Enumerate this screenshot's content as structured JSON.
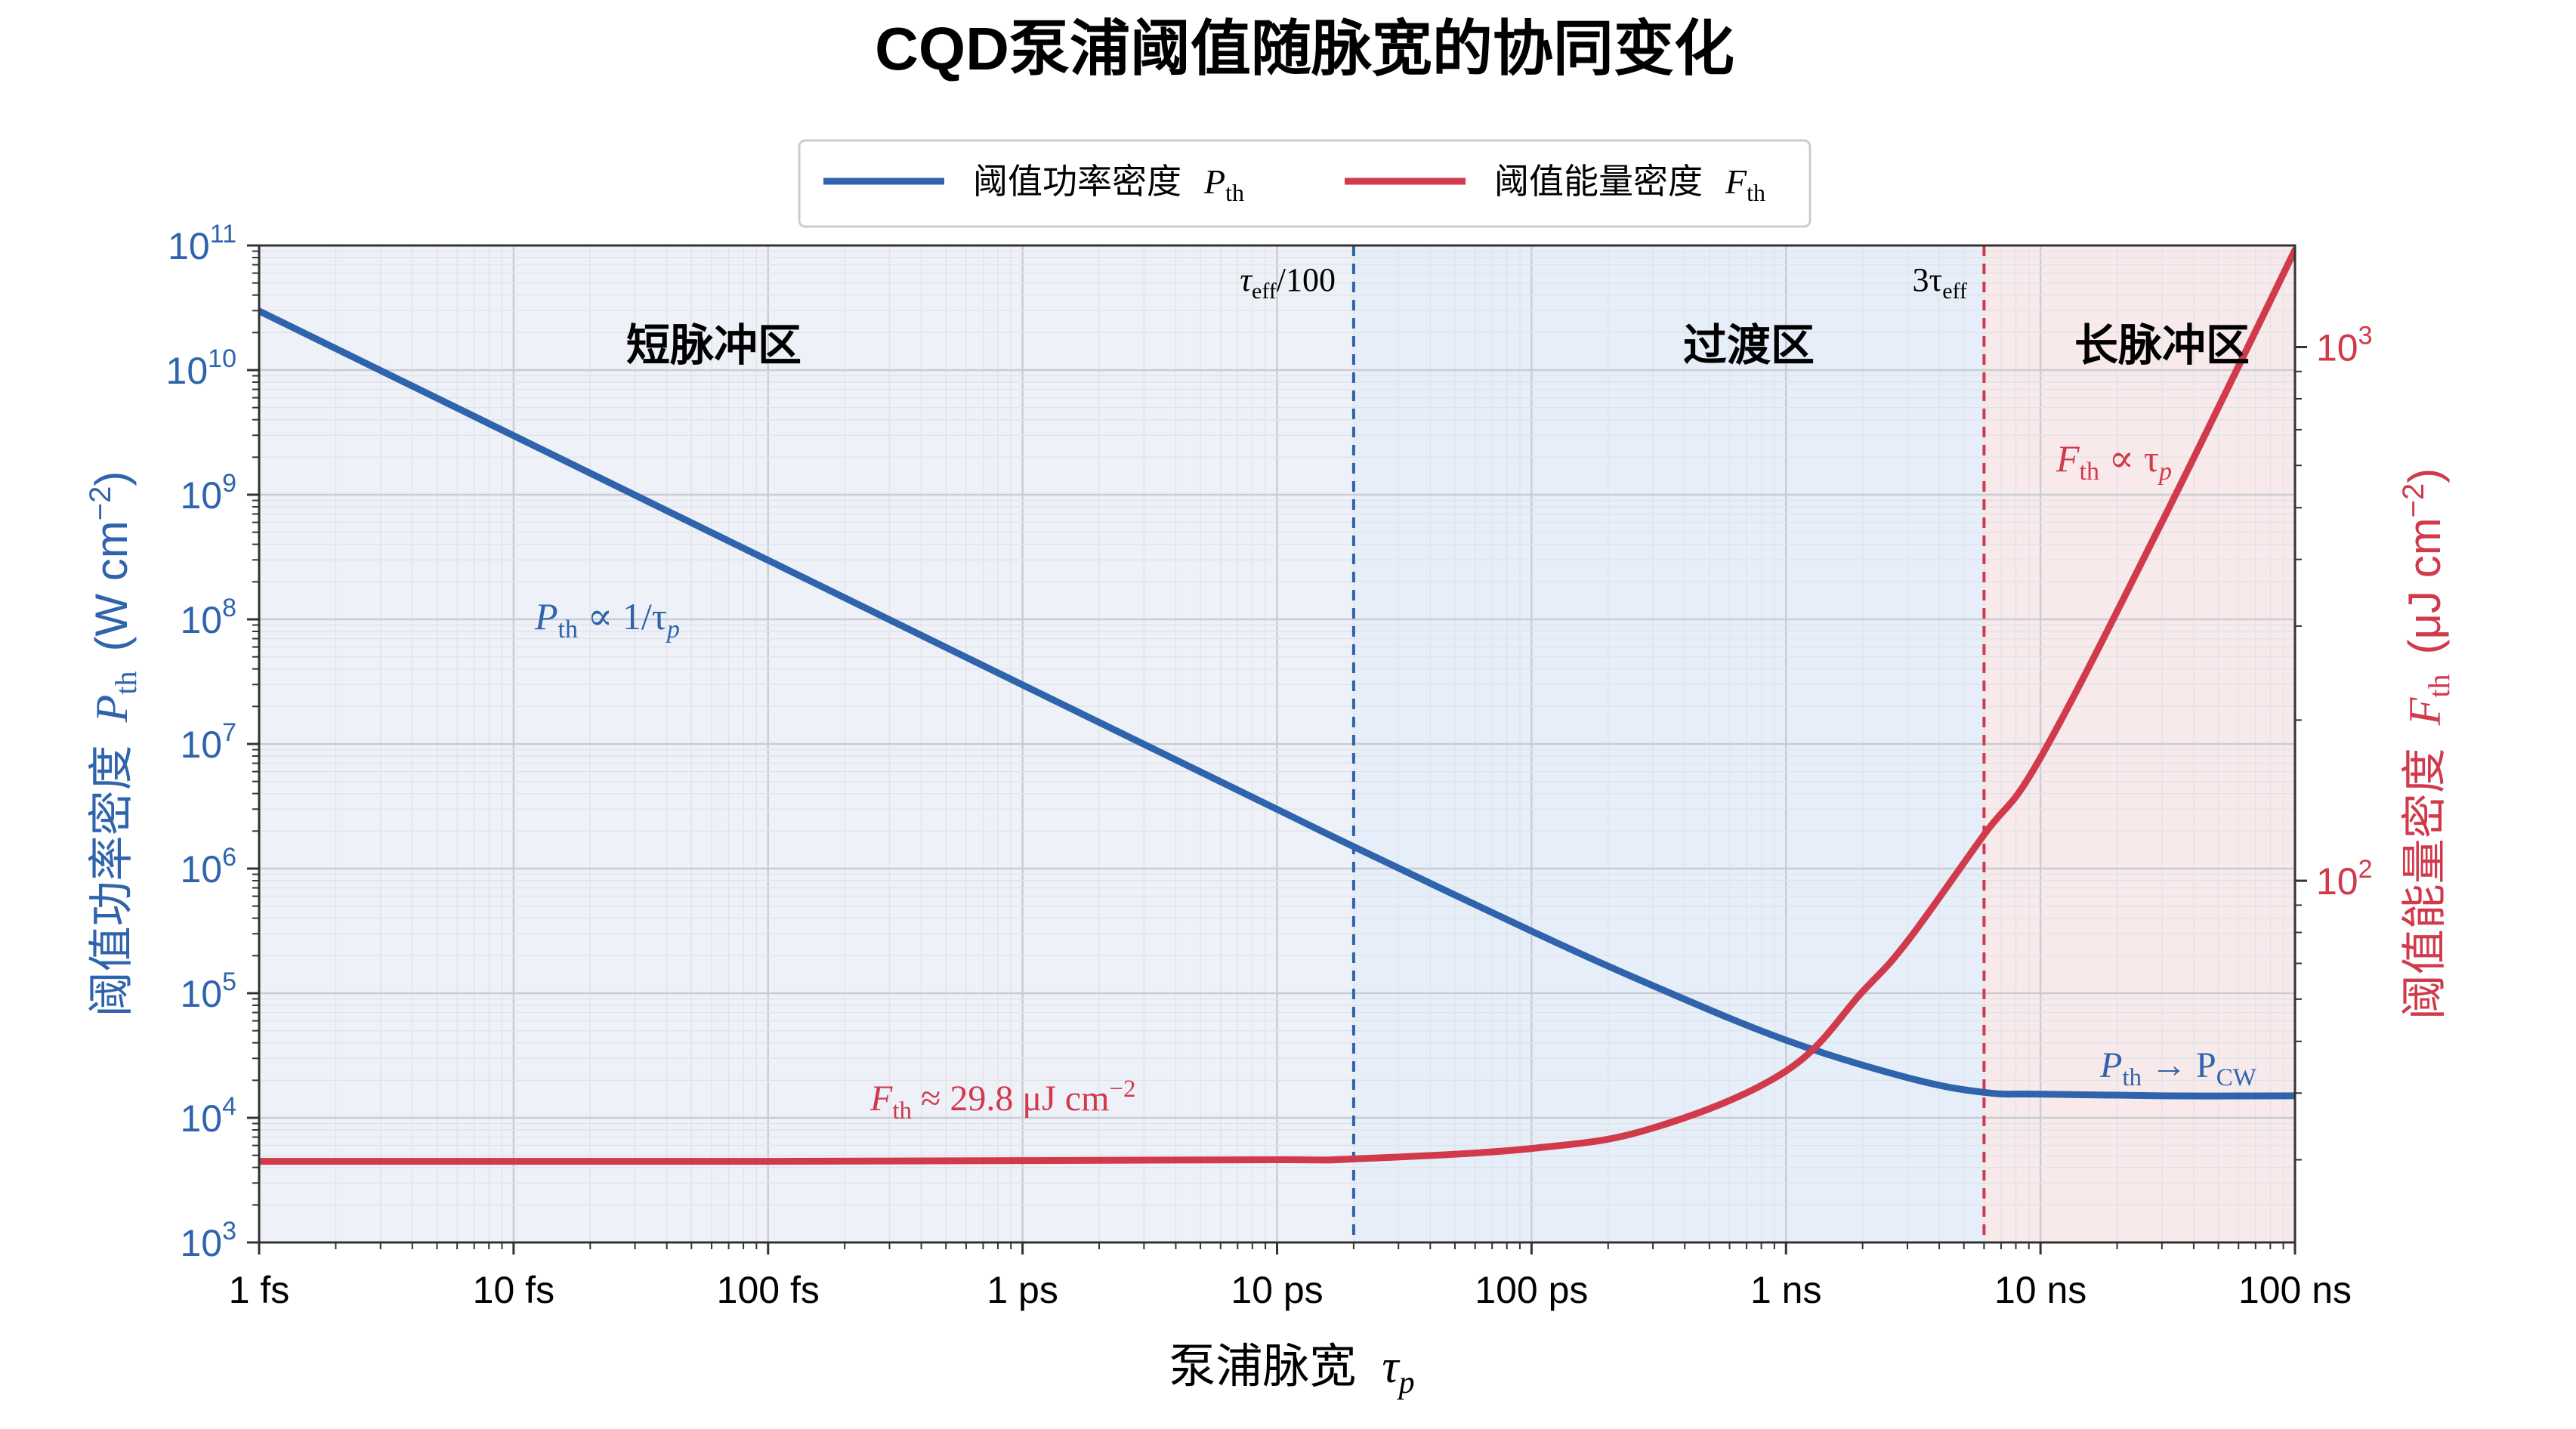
{
  "title": "CQD泵浦阈值随脉宽的协同变化",
  "colors": {
    "power": "#2f64ad",
    "energy": "#d03a4a",
    "text": "#000000",
    "short_region": "#eef1f7",
    "transition_region": "#e6eff9",
    "long_region": "#f8e9eb"
  },
  "legend": {
    "power_label": "阈值功率密度",
    "power_symbol": "P",
    "power_sub": "th",
    "energy_label": "阈值能量密度",
    "energy_symbol": "F",
    "energy_sub": "th"
  },
  "axes": {
    "x_label": "泵浦脉宽",
    "x_symbol": "τ",
    "x_symbol_sub": "p",
    "x_ticks": [
      "1 fs",
      "10 fs",
      "100 fs",
      "1 ps",
      "10 ps",
      "100 ps",
      "1 ns",
      "10 ns",
      "100 ns"
    ],
    "y_left_label": "阈值功率密度",
    "y_left_symbol": "P",
    "y_left_symbol_sub": "th",
    "y_left_unit": "(W cm",
    "y_left_unit_exp": "−2",
    "y_left_ticks": [
      {
        "base": "10",
        "exp": "3"
      },
      {
        "base": "10",
        "exp": "4"
      },
      {
        "base": "10",
        "exp": "5"
      },
      {
        "base": "10",
        "exp": "6"
      },
      {
        "base": "10",
        "exp": "7"
      },
      {
        "base": "10",
        "exp": "8"
      },
      {
        "base": "10",
        "exp": "9"
      },
      {
        "base": "10",
        "exp": "10"
      },
      {
        "base": "10",
        "exp": "11"
      }
    ],
    "y_right_label": "阈值能量密度",
    "y_right_symbol": "F",
    "y_right_symbol_sub": "th",
    "y_right_unit": "(μJ cm",
    "y_right_unit_exp": "−2",
    "y_right_ticks": [
      {
        "base": "10",
        "exp": "2"
      },
      {
        "base": "10",
        "exp": "3"
      }
    ]
  },
  "regions": {
    "short": "短脉冲区",
    "transition": "过渡区",
    "long": "长脉冲区"
  },
  "boundaries": {
    "left_label_main": "τ",
    "left_label_sub": "eff",
    "left_label_tail": "/100",
    "right_label_pre": "3τ",
    "right_label_sub": "eff"
  },
  "annotations": {
    "p_scaling": {
      "a": "P",
      "a_sub": "th",
      "b": " ∝ 1/τ",
      "b_sub": "p"
    },
    "f_scaling": {
      "a": "F",
      "a_sub": "th",
      "b": " ∝ τ",
      "b_sub": "p"
    },
    "f_const": {
      "a": "F",
      "a_sub": "th",
      "b": " ≈ 29.8  μJ cm",
      "b_sup": "−2"
    },
    "p_cw": {
      "a": "P",
      "a_sub": "th",
      "b": " → P",
      "b_sub": "CW"
    }
  },
  "chart_data": {
    "type": "line",
    "title": "CQD泵浦阈值随脉宽的协同变化",
    "xlabel": "泵浦脉宽 τp",
    "x_scale": "log",
    "xlim_s": [
      1e-15,
      1e-07
    ],
    "ylabel_left": "阈值功率密度 Pth (W cm−2)",
    "y_left_scale": "log",
    "ylim_left": [
      1000.0,
      100000000000.0
    ],
    "ylabel_right": "阈值能量密度 Fth (μJ cm−2)",
    "y_right_scale": "log",
    "ylim_right": [
      21,
      1550
    ],
    "grid": true,
    "legend_position": "top-center",
    "boundaries_s": [
      2e-11,
      6e-09
    ],
    "series": [
      {
        "name": "阈值功率密度 Pth",
        "axis": "left",
        "x_s": [
          1e-15,
          1e-14,
          1e-13,
          1e-12,
          1e-11,
          2e-11,
          1e-10,
          3e-10,
          1e-09,
          3e-09,
          6e-09,
          1e-08,
          3e-08,
          1e-07
        ],
        "y": [
          29800000000.0,
          2980000000.0,
          298000000.0,
          29800000.0,
          2990000.0,
          1500000.0,
          315000.0,
          115000.0,
          42000.0,
          21000.0,
          16000.0,
          15500.0,
          15000.0,
          15000.0
        ]
      },
      {
        "name": "阈值能量密度 Fth",
        "axis": "right",
        "x_s": [
          1e-15,
          1e-14,
          1e-13,
          1e-12,
          1e-11,
          2e-11,
          1e-10,
          3e-10,
          1e-09,
          2e-09,
          3e-09,
          6e-09,
          1e-08,
          3e-08,
          1e-07
        ],
        "y": [
          29.8,
          29.8,
          29.8,
          29.9,
          30.0,
          30.1,
          31.5,
          34.4,
          44,
          62,
          77,
          122,
          170,
          470,
          1520
        ]
      }
    ]
  }
}
